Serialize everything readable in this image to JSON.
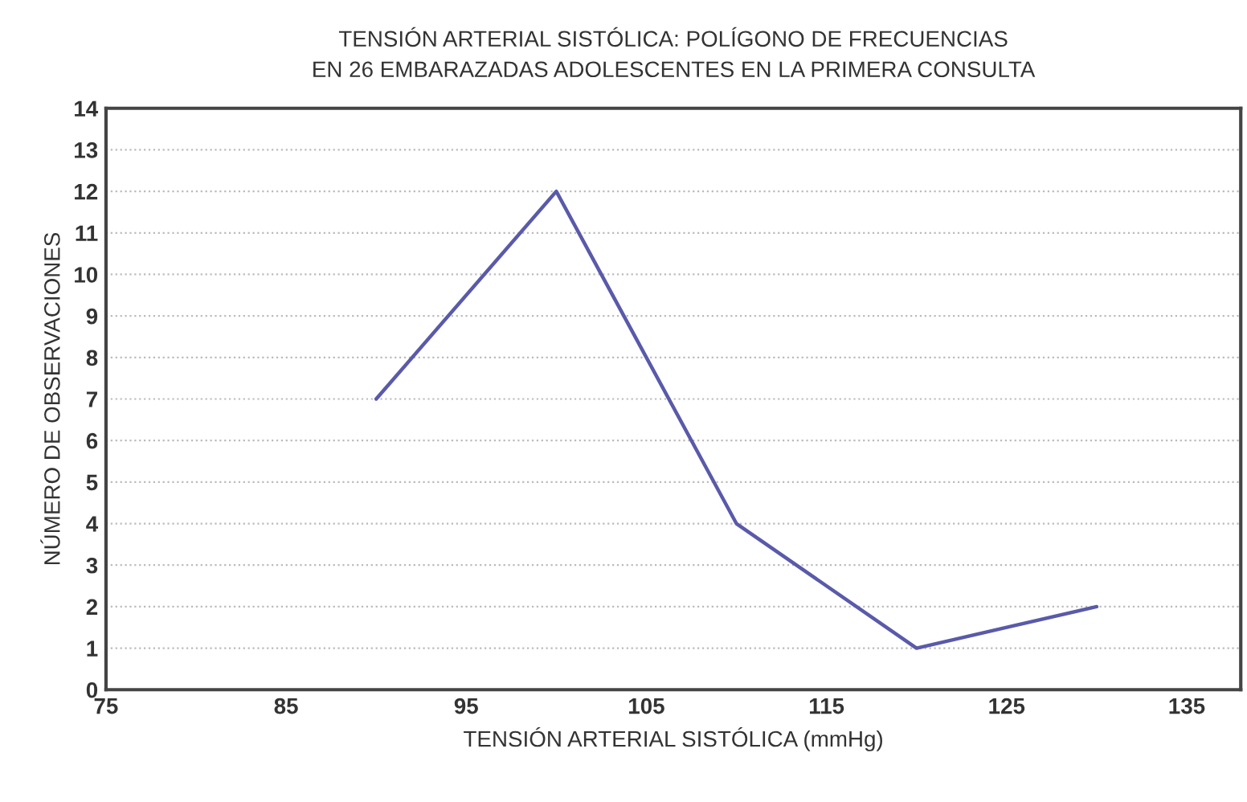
{
  "chart_data": {
    "type": "line",
    "title": "TENSIÓN ARTERIAL SISTÓLICA: POLÍGONO DE FRECUENCIAS\nEN 26 EMBARAZADAS ADOLESCENTES EN LA PRIMERA CONSULTA",
    "xlabel": "TENSIÓN ARTERIAL SISTÓLICA (mmHg)",
    "ylabel": "NÚMERO DE OBSERVACIONES",
    "x": [
      90,
      100,
      110,
      120,
      130
    ],
    "series": [
      {
        "color": "#5a5aaa",
        "values": [
          7,
          12,
          4,
          1,
          2
        ]
      }
    ],
    "xlim": [
      75,
      138
    ],
    "xticks": [
      75,
      85,
      95,
      105,
      115,
      125,
      135
    ],
    "ylim": [
      0,
      14
    ],
    "yticks": [
      0,
      1,
      2,
      3,
      4,
      5,
      6,
      7,
      8,
      9,
      10,
      11,
      12,
      13,
      14
    ],
    "grid": "y",
    "marker": "none",
    "line_style": "solid"
  }
}
